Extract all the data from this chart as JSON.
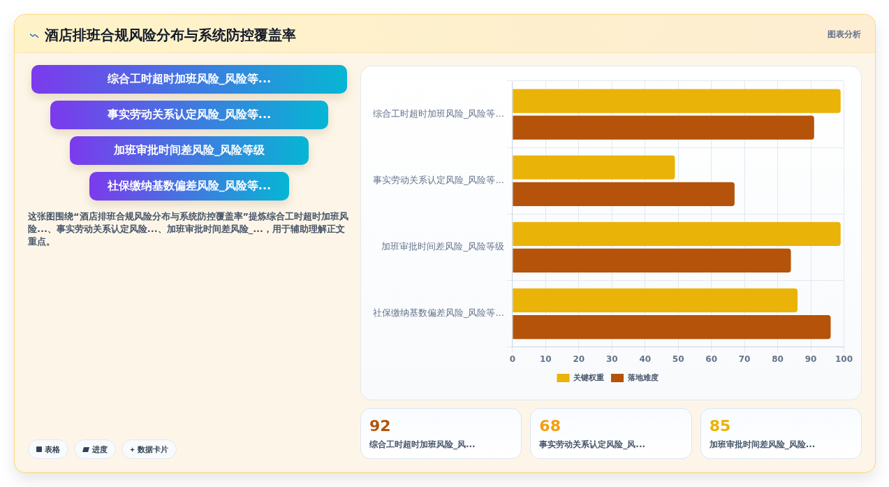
{
  "chart_data": [
    {
      "type": "other",
      "title": "酒店排班合规风险分布与系统防控覆盖率",
      "annotations": [
        "图表分析"
      ]
    },
    {
      "type": "other",
      "categories": [
        "综合工时超时加班风险_风险等...",
        "事实劳动关系认定风险_风险等...",
        "加班审批时间差风险_风险等级",
        "社保缴纳基数偏差风险_风险等..."
      ],
      "annotations": [
        "这张图围绕“酒店排班合规风险分布与系统防控覆盖率”提炼综合工时超时加班风险...、事实劳动关系认定风险...、加班审批时间差风险_...，用于辅助理解正文重点。",
        "表格",
        "进度",
        "数据卡片"
      ]
    },
    {
      "type": "bar",
      "orientation": "horizontal",
      "categories": [
        "综合工时超时加班风险_风险等...",
        "事实劳动关系认定风险_风险等...",
        "加班审批时间差风险_风险等级",
        "社保缴纳基数偏差风险_风险等..."
      ],
      "series": [
        {
          "name": "关键权重",
          "color": "#eab308",
          "values": [
            99,
            49,
            99,
            86
          ]
        },
        {
          "name": "落地难度",
          "color": "#b45309",
          "values": [
            91,
            67,
            84,
            96
          ]
        }
      ],
      "xlim": [
        0,
        100
      ],
      "xticks": [
        0,
        10,
        20,
        30,
        40,
        50,
        60,
        70,
        80,
        90,
        100
      ],
      "grid": true,
      "legend": "bottom"
    },
    {
      "type": "other",
      "categories": [
        "综合工时超时加班风险_风...",
        "事实劳动关系认定风险_风...",
        "加班审批时间差风险_风险..."
      ],
      "values": [
        92,
        68,
        85
      ],
      "data_labels": true
    }
  ]
}
